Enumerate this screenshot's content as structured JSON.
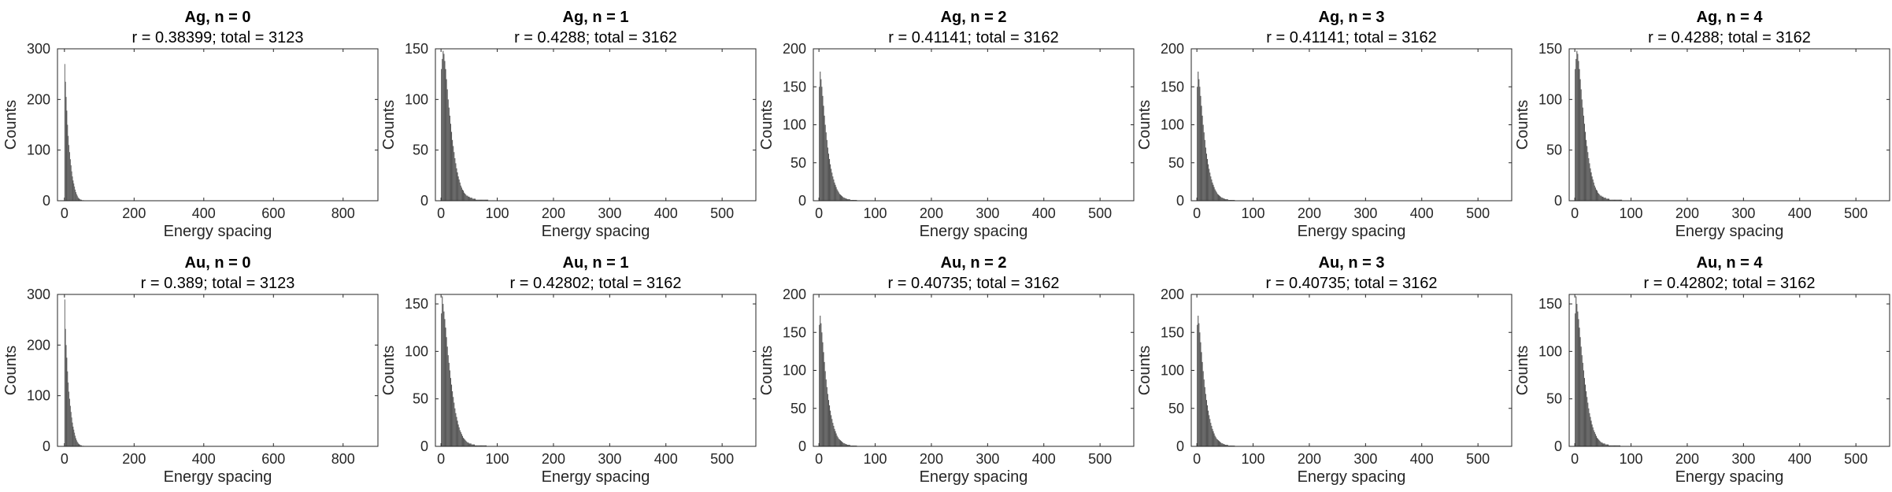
{
  "colors": {
    "bar": "#555555",
    "axis": "#262626",
    "background": "#ffffff"
  },
  "chart_data": [
    {
      "type": "bar",
      "title": "Ag, n = 0",
      "subtitle": "r = 0.38399; total = 3123",
      "xlabel": "Energy spacing",
      "ylabel": "Counts",
      "xlim": [
        -20,
        900
      ],
      "ylim": [
        0,
        300
      ],
      "xticks": [
        0,
        200,
        400,
        600,
        800
      ],
      "yticks": [
        0,
        100,
        200,
        300
      ],
      "bin_width": 2,
      "values": [
        270,
        235,
        205,
        178,
        150,
        128,
        110,
        96,
        82,
        70,
        58,
        48,
        40,
        34,
        28,
        22,
        17,
        13,
        10,
        7,
        5,
        4,
        3,
        2,
        2,
        1,
        1,
        1
      ]
    },
    {
      "type": "bar",
      "title": "Ag, n = 1",
      "subtitle": "r = 0.4288; total = 3162",
      "xlabel": "Energy spacing",
      "ylabel": "Counts",
      "xlim": [
        -10,
        560
      ],
      "ylim": [
        0,
        150
      ],
      "xticks": [
        0,
        100,
        200,
        300,
        400,
        500
      ],
      "yticks": [
        0,
        50,
        100,
        150
      ],
      "bin_width": 1.5,
      "values": [
        130,
        140,
        148,
        145,
        138,
        130,
        120,
        110,
        100,
        92,
        84,
        76,
        68,
        60,
        54,
        48,
        42,
        37,
        32,
        28,
        24,
        21,
        18,
        15,
        13,
        11,
        10,
        8,
        7,
        6,
        5,
        5,
        4,
        4,
        3,
        3,
        3,
        2,
        2,
        2,
        2,
        1,
        1,
        1,
        1,
        1,
        1,
        1,
        1,
        1,
        1,
        1,
        1,
        1,
        1,
        1
      ]
    },
    {
      "type": "bar",
      "title": "Ag, n = 2",
      "subtitle": "r = 0.41141; total = 3162",
      "xlabel": "Energy spacing",
      "ylabel": "Counts",
      "xlim": [
        -10,
        560
      ],
      "ylim": [
        0,
        200
      ],
      "xticks": [
        0,
        100,
        200,
        300,
        400,
        500
      ],
      "yticks": [
        0,
        50,
        100,
        150,
        200
      ],
      "bin_width": 1.5,
      "values": [
        150,
        170,
        160,
        150,
        138,
        125,
        112,
        100,
        90,
        80,
        70,
        62,
        55,
        48,
        42,
        37,
        32,
        28,
        24,
        21,
        18,
        15,
        13,
        11,
        9,
        8,
        7,
        6,
        5,
        4,
        4,
        3,
        3,
        2,
        2,
        2,
        2,
        1,
        1,
        1,
        1,
        1,
        1,
        1,
        1
      ]
    },
    {
      "type": "bar",
      "title": "Ag, n = 3",
      "subtitle": "r = 0.41141; total = 3162",
      "xlabel": "Energy spacing",
      "ylabel": "Counts",
      "xlim": [
        -10,
        560
      ],
      "ylim": [
        0,
        200
      ],
      "xticks": [
        0,
        100,
        200,
        300,
        400,
        500
      ],
      "yticks": [
        0,
        50,
        100,
        150,
        200
      ],
      "bin_width": 1.5,
      "values": [
        150,
        170,
        160,
        150,
        138,
        125,
        112,
        100,
        90,
        80,
        70,
        62,
        55,
        48,
        42,
        37,
        32,
        28,
        24,
        21,
        18,
        15,
        13,
        11,
        9,
        8,
        7,
        6,
        5,
        4,
        4,
        3,
        3,
        2,
        2,
        2,
        2,
        1,
        1,
        1,
        1,
        1,
        1,
        1,
        1
      ]
    },
    {
      "type": "bar",
      "title": "Ag, n = 4",
      "subtitle": "r = 0.4288; total = 3162",
      "xlabel": "Energy spacing",
      "ylabel": "Counts",
      "xlim": [
        -10,
        560
      ],
      "ylim": [
        0,
        150
      ],
      "xticks": [
        0,
        100,
        200,
        300,
        400,
        500
      ],
      "yticks": [
        0,
        50,
        100,
        150
      ],
      "bin_width": 1.5,
      "values": [
        130,
        140,
        148,
        145,
        138,
        130,
        120,
        110,
        100,
        92,
        84,
        76,
        68,
        60,
        54,
        48,
        42,
        37,
        32,
        28,
        24,
        21,
        18,
        15,
        13,
        11,
        10,
        8,
        7,
        6,
        5,
        5,
        4,
        4,
        3,
        3,
        3,
        2,
        2,
        2,
        2,
        1,
        1,
        1,
        1,
        1,
        1,
        1,
        1,
        1,
        1,
        1,
        1,
        1,
        1,
        1
      ]
    },
    {
      "type": "bar",
      "title": "Au, n = 0",
      "subtitle": "r = 0.389; total = 3123",
      "xlabel": "Energy spacing",
      "ylabel": "Counts",
      "xlim": [
        -20,
        900
      ],
      "ylim": [
        0,
        300
      ],
      "xticks": [
        0,
        200,
        400,
        600,
        800
      ],
      "yticks": [
        0,
        100,
        200,
        300
      ],
      "bin_width": 2,
      "values": [
        290,
        232,
        200,
        175,
        148,
        126,
        108,
        94,
        80,
        68,
        57,
        47,
        39,
        33,
        27,
        21,
        16,
        12,
        9,
        7,
        5,
        4,
        3,
        2,
        2,
        1,
        1,
        1
      ]
    },
    {
      "type": "bar",
      "title": "Au, n = 1",
      "subtitle": "r = 0.42802; total = 3162",
      "xlabel": "Energy spacing",
      "ylabel": "Counts",
      "xlim": [
        -10,
        560
      ],
      "ylim": [
        0,
        160
      ],
      "xticks": [
        0,
        100,
        200,
        300,
        400,
        500
      ],
      "yticks": [
        0,
        50,
        100,
        150
      ],
      "bin_width": 1.5,
      "values": [
        140,
        158,
        150,
        142,
        134,
        125,
        115,
        105,
        96,
        88,
        80,
        72,
        65,
        58,
        52,
        46,
        40,
        35,
        31,
        27,
        23,
        20,
        17,
        15,
        13,
        11,
        9,
        8,
        7,
        6,
        5,
        4,
        4,
        3,
        3,
        3,
        2,
        2,
        2,
        2,
        1,
        1,
        1,
        1,
        1,
        1,
        1,
        1,
        1,
        1,
        1,
        1,
        1,
        1
      ]
    },
    {
      "type": "bar",
      "title": "Au, n = 2",
      "subtitle": "r = 0.40735; total = 3162",
      "xlabel": "Energy spacing",
      "ylabel": "Counts",
      "xlim": [
        -10,
        560
      ],
      "ylim": [
        0,
        200
      ],
      "xticks": [
        0,
        100,
        200,
        300,
        400,
        500
      ],
      "yticks": [
        0,
        50,
        100,
        150,
        200
      ],
      "bin_width": 1.5,
      "values": [
        160,
        172,
        162,
        150,
        137,
        124,
        111,
        99,
        88,
        78,
        69,
        61,
        54,
        47,
        41,
        36,
        31,
        27,
        23,
        20,
        17,
        14,
        12,
        10,
        9,
        8,
        7,
        6,
        5,
        4,
        4,
        3,
        3,
        2,
        2,
        2,
        2,
        1,
        1,
        1,
        1,
        1,
        1,
        1,
        1
      ]
    },
    {
      "type": "bar",
      "title": "Au, n = 3",
      "subtitle": "r = 0.40735; total = 3162",
      "xlabel": "Energy spacing",
      "ylabel": "Counts",
      "xlim": [
        -10,
        560
      ],
      "ylim": [
        0,
        200
      ],
      "xticks": [
        0,
        100,
        200,
        300,
        400,
        500
      ],
      "yticks": [
        0,
        50,
        100,
        150,
        200
      ],
      "bin_width": 1.5,
      "values": [
        160,
        172,
        162,
        150,
        137,
        124,
        111,
        99,
        88,
        78,
        69,
        61,
        54,
        47,
        41,
        36,
        31,
        27,
        23,
        20,
        17,
        14,
        12,
        10,
        9,
        8,
        7,
        6,
        5,
        4,
        4,
        3,
        3,
        2,
        2,
        2,
        2,
        1,
        1,
        1,
        1,
        1,
        1,
        1,
        1
      ]
    },
    {
      "type": "bar",
      "title": "Au, n = 4",
      "subtitle": "r = 0.42802; total = 3162",
      "xlabel": "Energy spacing",
      "ylabel": "Counts",
      "xlim": [
        -10,
        560
      ],
      "ylim": [
        0,
        160
      ],
      "xticks": [
        0,
        100,
        200,
        300,
        400,
        500
      ],
      "yticks": [
        0,
        50,
        100,
        150
      ],
      "bin_width": 1.5,
      "values": [
        140,
        158,
        150,
        142,
        134,
        125,
        115,
        105,
        96,
        88,
        80,
        72,
        65,
        58,
        52,
        46,
        40,
        35,
        31,
        27,
        23,
        20,
        17,
        15,
        13,
        11,
        9,
        8,
        7,
        6,
        5,
        4,
        4,
        3,
        3,
        3,
        2,
        2,
        2,
        2,
        1,
        1,
        1,
        1,
        1,
        1,
        1,
        1,
        1,
        1,
        1,
        1,
        1,
        1
      ]
    }
  ]
}
